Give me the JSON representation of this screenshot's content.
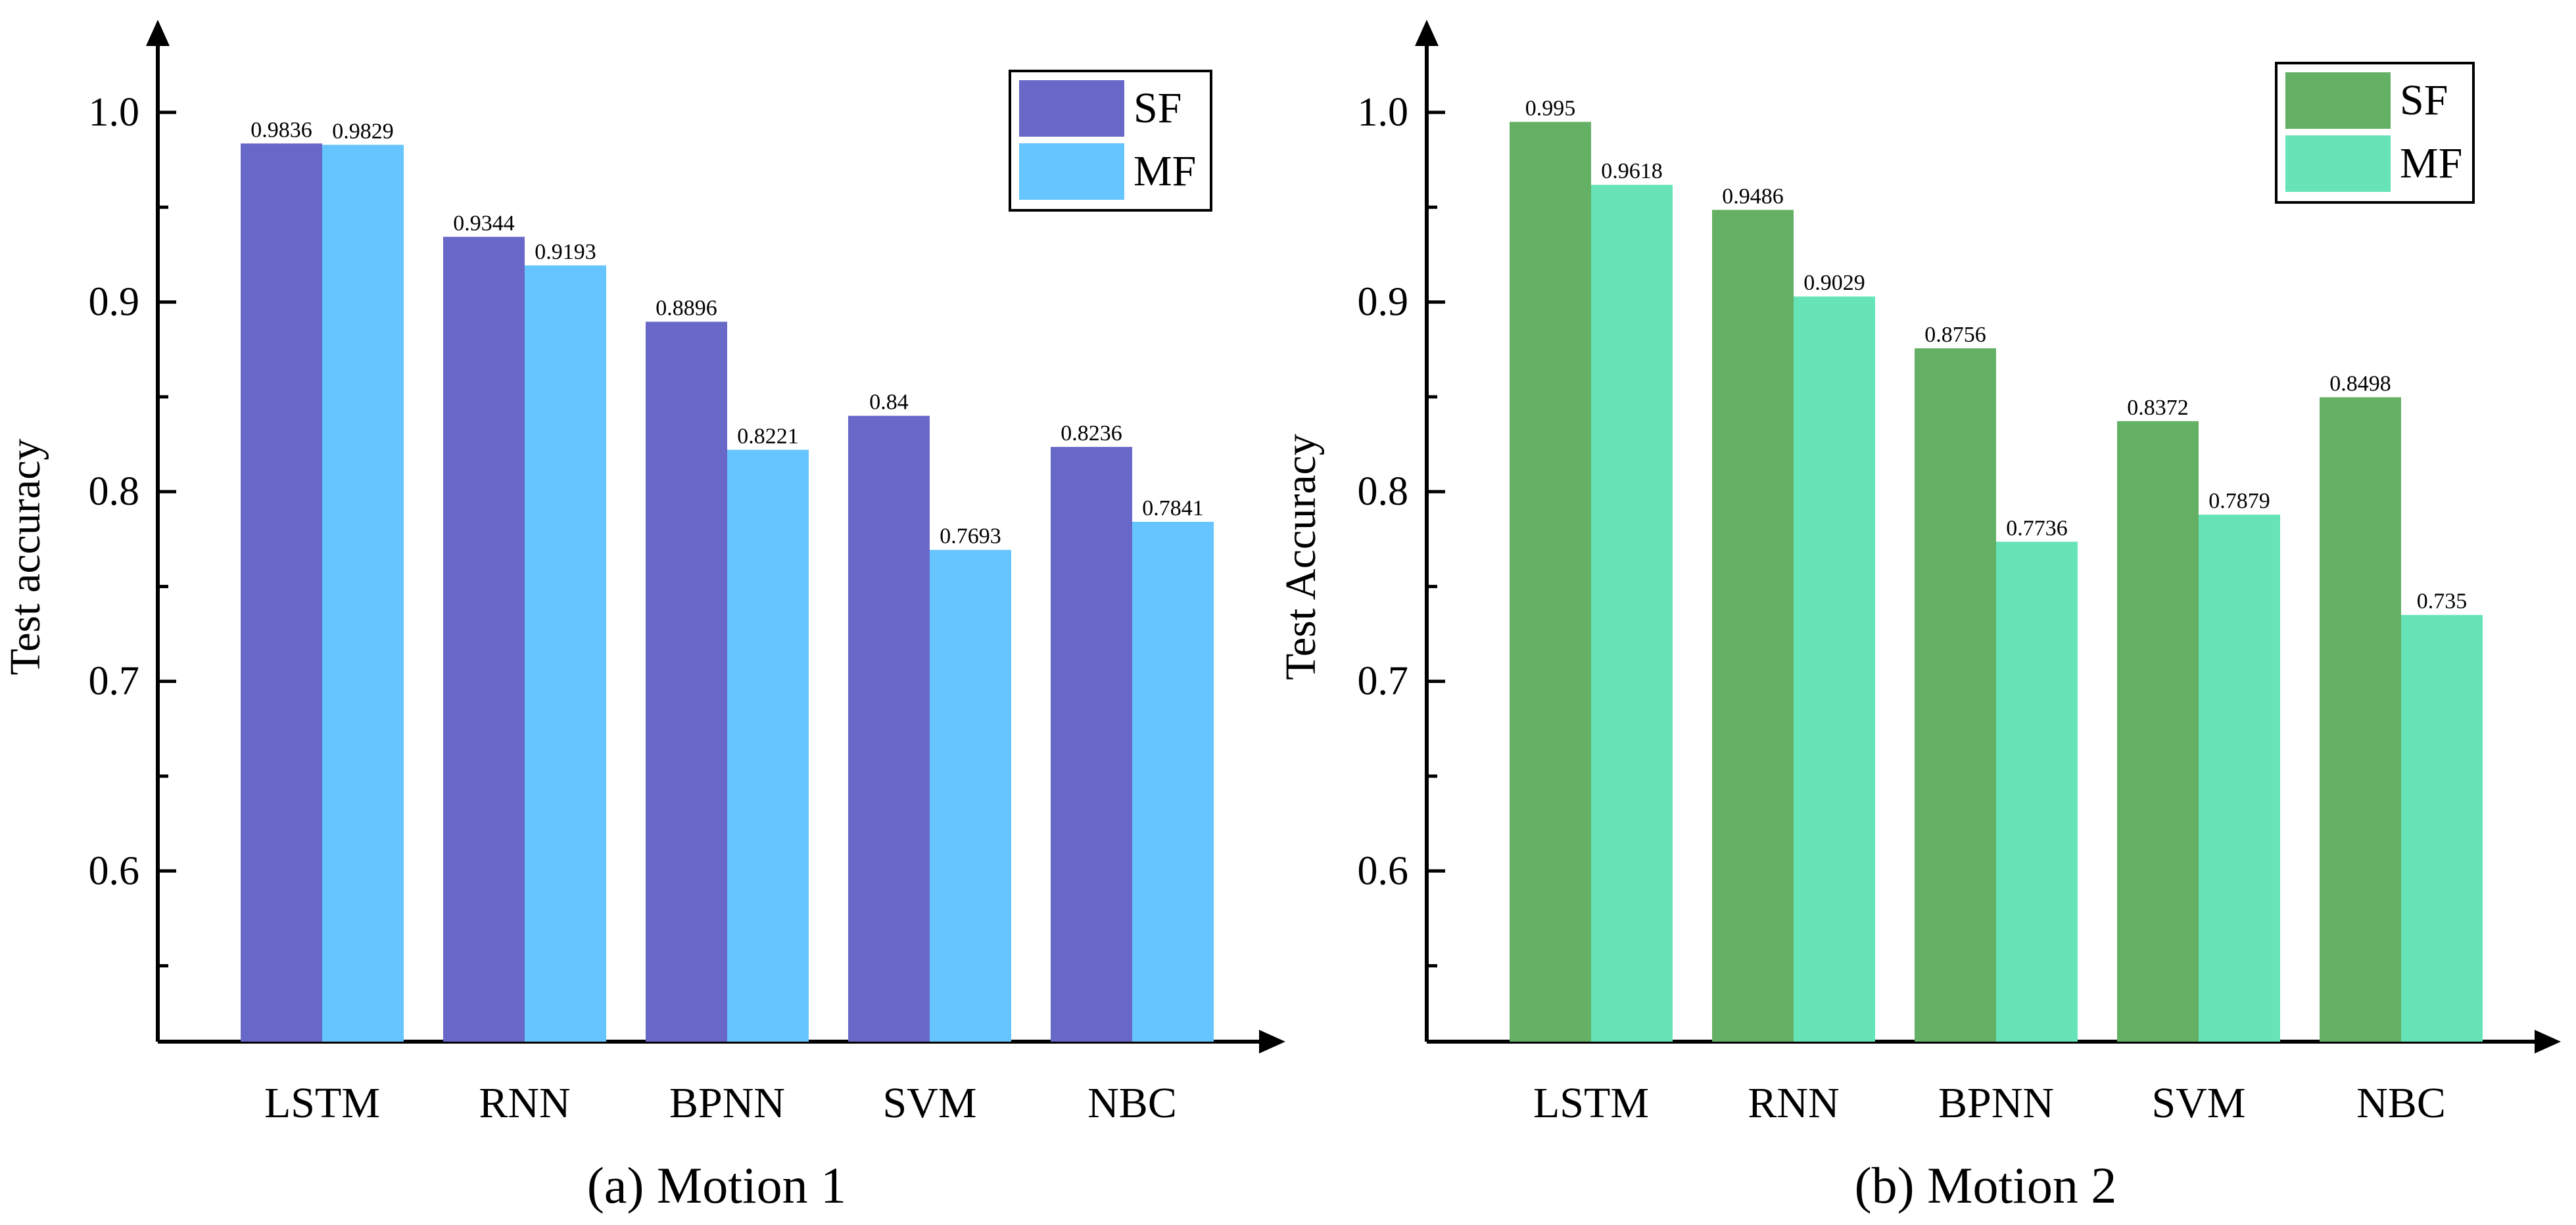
{
  "chart_data": [
    {
      "type": "bar",
      "caption": "(a) Motion 1",
      "ylabel": "Test accuracy",
      "xlabel": "",
      "ylim": [
        0.51,
        1.035
      ],
      "yticks": [
        0.6,
        0.7,
        0.8,
        0.9,
        1.0
      ],
      "ytick_labels": [
        "0.6",
        "0.7",
        "0.8",
        "0.9",
        "1.0"
      ],
      "categories": [
        "LSTM",
        "RNN",
        "BPNN",
        "SVM",
        "NBC"
      ],
      "legend_position": "top-right",
      "series": [
        {
          "name": "SF",
          "color": "#6868c8",
          "values": [
            0.9836,
            0.9344,
            0.8896,
            0.84,
            0.8236
          ],
          "labels": [
            "0.9836",
            "0.9344",
            "0.8896",
            "0.84",
            "0.8236"
          ]
        },
        {
          "name": "MF",
          "color": "#66c4fe",
          "values": [
            0.9829,
            0.9193,
            0.8221,
            0.7693,
            0.7841
          ],
          "labels": [
            "0.9829",
            "0.9193",
            "0.8221",
            "0.7693",
            "0.7841"
          ]
        }
      ]
    },
    {
      "type": "bar",
      "caption": "(b) Motion 2",
      "ylabel": "Test Accuracy",
      "xlabel": "",
      "ylim": [
        0.51,
        1.035
      ],
      "yticks": [
        0.6,
        0.7,
        0.8,
        0.9,
        1.0
      ],
      "ytick_labels": [
        "0.6",
        "0.7",
        "0.8",
        "0.9",
        "1.0"
      ],
      "categories": [
        "LSTM",
        "RNN",
        "BPNN",
        "SVM",
        "NBC"
      ],
      "legend_position": "top-right",
      "series": [
        {
          "name": "SF",
          "color": "#64b064",
          "values": [
            0.995,
            0.9486,
            0.8756,
            0.8372,
            0.8498
          ],
          "labels": [
            "0.995",
            "0.9486",
            "0.8756",
            "0.8372",
            "0.8498"
          ]
        },
        {
          "name": "MF",
          "color": "#66e4b8",
          "values": [
            0.9618,
            0.9029,
            0.7736,
            0.7879,
            0.735
          ],
          "labels": [
            "0.9618",
            "0.9029",
            "0.7736",
            "0.7879",
            "0.735"
          ]
        }
      ]
    }
  ]
}
